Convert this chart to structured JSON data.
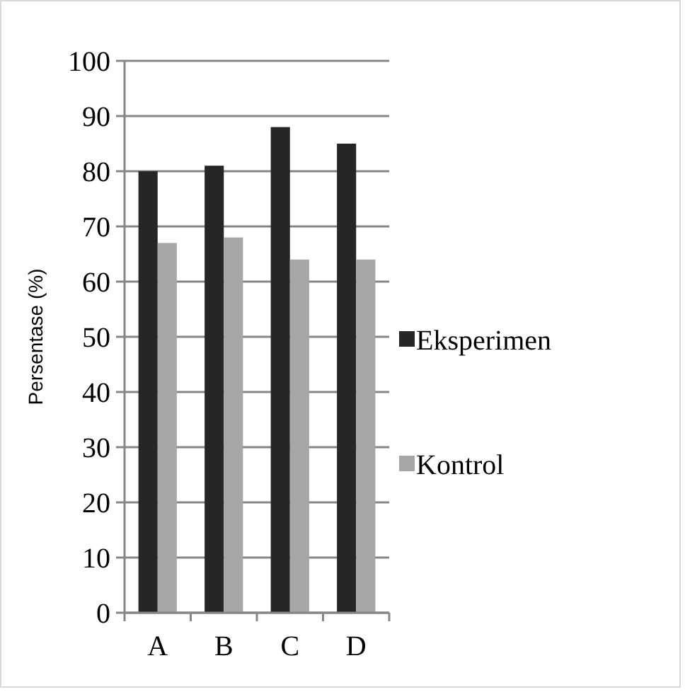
{
  "chart_data": {
    "type": "bar",
    "ylabel": "Persentase (%)",
    "categories": [
      "A",
      "B",
      "C",
      "D"
    ],
    "series": [
      {
        "name": "Eksperimen",
        "color": "#262626",
        "values": [
          80,
          81,
          88,
          85
        ]
      },
      {
        "name": "Kontrol",
        "color": "#a6a6a6",
        "values": [
          67,
          68,
          64,
          64
        ]
      }
    ],
    "ylim": [
      0,
      100
    ],
    "yticks": [
      0,
      10,
      20,
      30,
      40,
      50,
      60,
      70,
      80,
      90,
      100
    ],
    "grid": "y",
    "legend": "right"
  }
}
